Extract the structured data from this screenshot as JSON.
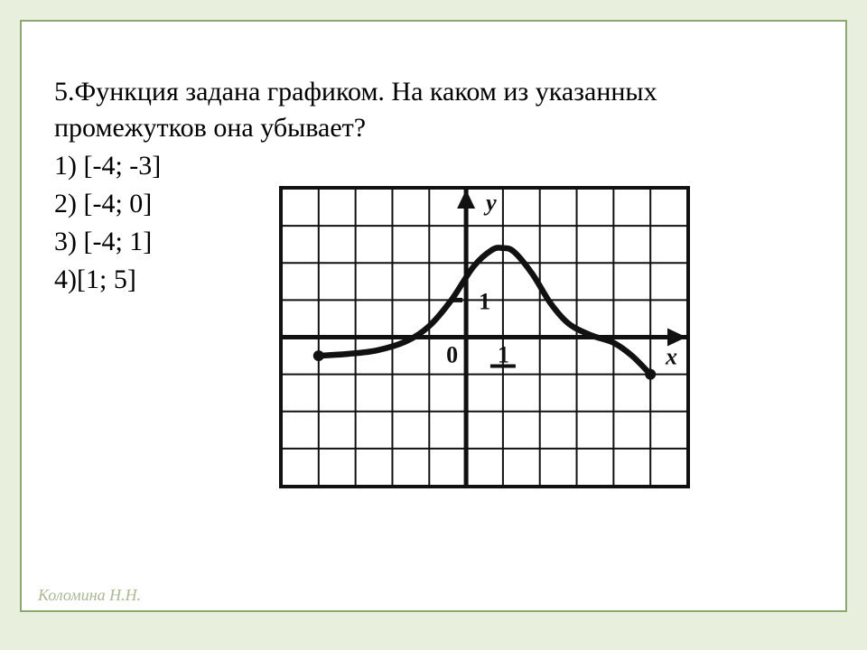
{
  "question": {
    "text_line1": "5.Функция задана графиком. На каком из указанных",
    "text_line2": "промежутков она    убывает?"
  },
  "options": [
    "1) [-4; -3]",
    "2) [-4; 0]",
    "3) [-4; 1]",
    "4)[1; 5]"
  ],
  "footer": "Коломина Н.Н.",
  "chart": {
    "type": "line",
    "xlim": [
      -5,
      6
    ],
    "ylim": [
      -4,
      4
    ],
    "xtick_step": 1,
    "ytick_step": 1,
    "grid_color": "#111111",
    "grid_stroke": 2,
    "background_color": "#ffffff",
    "axis_color": "#111111",
    "axis_stroke": 5,
    "curve_color": "#111111",
    "curve_stroke": 6.5,
    "label_y": "y",
    "label_x": "x",
    "tick_label_x": "1",
    "tick_label_y": "1",
    "origin_label": "0",
    "label_fontsize": 26,
    "endpoint_marker_radius": 6,
    "curve_points": [
      [
        -4,
        -0.5
      ],
      [
        -3.2,
        -0.45
      ],
      [
        -2.4,
        -0.35
      ],
      [
        -1.6,
        -0.1
      ],
      [
        -1.0,
        0.3
      ],
      [
        -0.4,
        1.0
      ],
      [
        0.2,
        1.9
      ],
      [
        0.7,
        2.35
      ],
      [
        1.0,
        2.4
      ],
      [
        1.3,
        2.3
      ],
      [
        1.8,
        1.7
      ],
      [
        2.3,
        0.9
      ],
      [
        2.8,
        0.35
      ],
      [
        3.4,
        0.05
      ],
      [
        4.0,
        -0.15
      ],
      [
        4.5,
        -0.5
      ],
      [
        5.0,
        -1.0
      ]
    ]
  }
}
